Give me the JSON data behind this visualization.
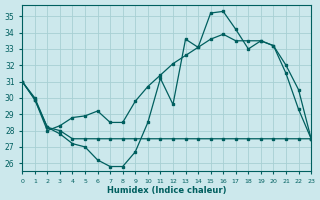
{
  "xlabel": "Humidex (Indice chaleur)",
  "bg_color": "#cce8ec",
  "grid_color": "#a8d0d4",
  "line_color": "#005f5f",
  "xlim": [
    0,
    23
  ],
  "ylim": [
    25.5,
    35.7
  ],
  "xticks": [
    0,
    1,
    2,
    3,
    4,
    5,
    6,
    7,
    8,
    9,
    10,
    11,
    12,
    13,
    14,
    15,
    16,
    17,
    18,
    19,
    20,
    21,
    22,
    23
  ],
  "yticks": [
    26,
    27,
    28,
    29,
    30,
    31,
    32,
    33,
    34,
    35
  ],
  "line1_x": [
    0,
    1,
    2,
    3,
    4,
    5,
    6,
    7,
    8,
    9,
    10,
    11,
    12,
    13,
    14,
    15,
    16,
    17,
    18,
    19,
    20,
    21,
    22,
    23
  ],
  "line1_y": [
    31.0,
    30.0,
    28.2,
    27.8,
    27.2,
    27.0,
    26.2,
    25.8,
    25.8,
    26.7,
    28.5,
    31.2,
    29.6,
    33.6,
    33.1,
    35.2,
    35.3,
    34.2,
    33.0,
    33.5,
    33.2,
    31.5,
    29.3,
    27.5
  ],
  "line2_x": [
    0,
    1,
    2,
    3,
    4,
    5,
    6,
    7,
    8,
    9,
    10,
    11,
    12,
    13,
    14,
    15,
    16,
    17,
    18,
    19,
    20,
    21,
    22,
    23
  ],
  "line2_y": [
    31.0,
    29.9,
    28.0,
    28.3,
    28.8,
    28.9,
    29.2,
    28.5,
    28.5,
    29.8,
    30.7,
    31.4,
    32.1,
    32.6,
    33.1,
    33.6,
    33.9,
    33.5,
    33.5,
    33.5,
    33.2,
    32.0,
    30.5,
    27.5
  ],
  "line3_x": [
    0,
    1,
    2,
    3,
    4,
    5,
    6,
    7,
    8,
    9,
    10,
    11,
    12,
    13,
    14,
    15,
    16,
    17,
    18,
    19,
    20,
    21,
    22,
    23
  ],
  "line3_y": [
    31.0,
    29.9,
    28.2,
    28.0,
    27.5,
    27.5,
    27.5,
    27.5,
    27.5,
    27.5,
    27.5,
    27.5,
    27.5,
    27.5,
    27.5,
    27.5,
    27.5,
    27.5,
    27.5,
    27.5,
    27.5,
    27.5,
    27.5,
    27.5
  ]
}
